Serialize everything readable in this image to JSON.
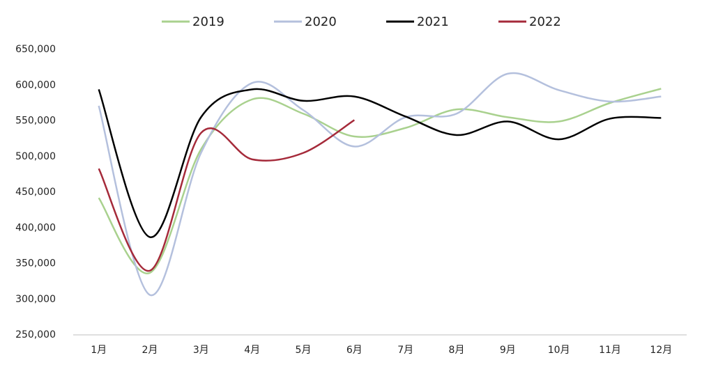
{
  "chart_data": {
    "type": "line",
    "categories": [
      "1月",
      "2月",
      "3月",
      "4月",
      "5月",
      "6月",
      "7月",
      "8月",
      "9月",
      "10月",
      "11月",
      "12月"
    ],
    "series": [
      {
        "name": "2019",
        "color": "#a9d18e",
        "values": [
          442000,
          337000,
          510000,
          580000,
          560000,
          528000,
          540000,
          566000,
          555000,
          549000,
          575000,
          595000
        ]
      },
      {
        "name": "2020",
        "color": "#b4c0dd",
        "values": [
          571000,
          306000,
          505000,
          603000,
          565000,
          514000,
          555000,
          560000,
          616000,
          593000,
          577000,
          584000
        ]
      },
      {
        "name": "2021",
        "color": "#000000",
        "values": [
          594000,
          387000,
          555000,
          594000,
          578000,
          584000,
          556000,
          530000,
          549000,
          524000,
          553000,
          554000
        ]
      },
      {
        "name": "2022",
        "color": "#a52a3a",
        "values": [
          483000,
          340000,
          533000,
          496000,
          505000,
          551000,
          null,
          null,
          null,
          null,
          null,
          null
        ]
      }
    ],
    "ylim": [
      250000,
      650000
    ],
    "yticks": [
      {
        "value": 250000,
        "label": "250,000"
      },
      {
        "value": 300000,
        "label": "300,000"
      },
      {
        "value": 350000,
        "label": "350,000"
      },
      {
        "value": 400000,
        "label": "400,000"
      },
      {
        "value": 450000,
        "label": "450,000"
      },
      {
        "value": 500000,
        "label": "500,000"
      },
      {
        "value": 550000,
        "label": "550,000"
      },
      {
        "value": 600000,
        "label": "600,000"
      },
      {
        "value": 650000,
        "label": "650,000"
      }
    ],
    "legend": "top",
    "smooth": true
  }
}
